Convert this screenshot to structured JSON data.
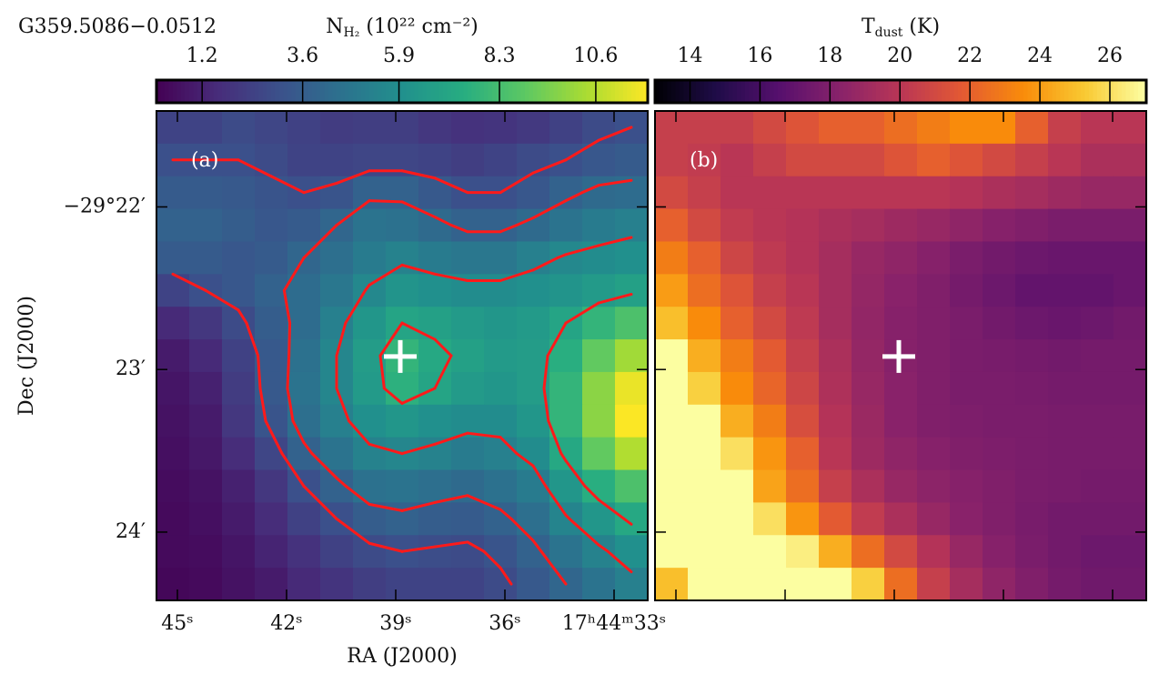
{
  "chart_data": [
    {
      "type": "heatmap",
      "title": "G359.5086−0.0512",
      "panel_label": "(a)",
      "colorbar_label": {
        "main": "N",
        "sub": "H₂",
        "rest": " (10²² cm⁻²)"
      },
      "x_label": "RA (J2000)",
      "y_label": "Dec (J2000)",
      "colormap": "viridis",
      "clim": [
        0.11,
        11.84
      ],
      "cticks": [
        1.2,
        3.6,
        5.9,
        8.3,
        10.6
      ],
      "xlim": [
        45.575,
        32.075
      ],
      "xticks": [
        {
          "value": 45,
          "label": "45ˢ"
        },
        {
          "value": 42,
          "label": "42ˢ"
        },
        {
          "value": 39,
          "label": "39ˢ"
        },
        {
          "value": 36,
          "label": "36ˢ"
        },
        {
          "value": 33,
          "label": "17ʰ44ᵐ33ˢ"
        }
      ],
      "ylim": [
        21.41,
        24.42
      ],
      "yticks": [
        {
          "value": 22,
          "label": "−29°22′"
        },
        {
          "value": 23,
          "label": "23′"
        },
        {
          "value": 24,
          "label": "24′"
        }
      ],
      "values": [
        [
          2.5,
          2.5,
          2.8,
          2.6,
          2.4,
          2.2,
          2.3,
          2.3,
          2.0,
          1.8,
          1.9,
          2.1,
          2.4,
          2.8,
          3.0
        ],
        [
          3.0,
          3.0,
          3.0,
          2.8,
          2.5,
          2.5,
          2.6,
          2.6,
          2.5,
          2.3,
          2.5,
          2.8,
          3.0,
          3.3,
          3.5
        ],
        [
          3.5,
          3.5,
          3.4,
          3.2,
          3.0,
          3.2,
          3.8,
          3.8,
          3.4,
          3.0,
          3.0,
          3.3,
          3.8,
          4.2,
          4.3
        ],
        [
          3.8,
          3.8,
          3.6,
          3.3,
          3.5,
          4.0,
          4.6,
          4.5,
          4.2,
          3.8,
          3.8,
          4.2,
          4.6,
          5.0,
          5.2
        ],
        [
          3.5,
          3.5,
          3.3,
          3.5,
          4.0,
          4.4,
          5.0,
          5.3,
          5.0,
          4.8,
          4.8,
          5.2,
          5.6,
          5.8,
          6.0
        ],
        [
          2.5,
          3.0,
          3.3,
          3.8,
          4.3,
          4.8,
          5.6,
          6.2,
          6.0,
          5.8,
          5.8,
          6.0,
          6.2,
          6.5,
          6.8
        ],
        [
          1.5,
          2.0,
          2.8,
          3.6,
          4.3,
          5.2,
          6.3,
          7.0,
          6.8,
          6.5,
          6.3,
          6.5,
          7.0,
          7.8,
          8.5
        ],
        [
          1.0,
          1.5,
          2.4,
          3.4,
          4.5,
          5.5,
          6.6,
          7.8,
          7.2,
          6.8,
          6.5,
          6.6,
          7.5,
          9.0,
          10.2
        ],
        [
          0.8,
          1.2,
          2.2,
          3.4,
          4.6,
          5.5,
          6.5,
          7.6,
          7.0,
          6.5,
          6.3,
          6.6,
          7.8,
          9.8,
          11.5
        ],
        [
          0.7,
          1.0,
          2.0,
          3.2,
          4.4,
          5.2,
          6.0,
          6.3,
          6.0,
          5.8,
          5.8,
          6.3,
          7.8,
          9.8,
          11.8
        ],
        [
          0.6,
          0.9,
          1.6,
          2.6,
          3.8,
          4.6,
          5.3,
          5.5,
          5.3,
          5.0,
          5.2,
          5.8,
          7.2,
          9.0,
          10.5
        ],
        [
          0.5,
          0.7,
          1.2,
          2.0,
          3.0,
          3.8,
          4.5,
          4.6,
          4.4,
          4.2,
          4.5,
          5.0,
          6.3,
          7.5,
          8.5
        ],
        [
          0.4,
          0.6,
          1.0,
          1.6,
          2.4,
          3.0,
          3.6,
          3.8,
          3.6,
          3.5,
          3.8,
          4.4,
          5.4,
          6.3,
          7.2
        ],
        [
          0.4,
          0.5,
          0.8,
          1.3,
          1.8,
          2.4,
          2.8,
          3.0,
          2.9,
          2.8,
          3.2,
          3.8,
          4.6,
          5.3,
          6.0
        ],
        [
          0.3,
          0.4,
          0.7,
          1.0,
          1.5,
          1.9,
          2.3,
          2.5,
          2.5,
          2.5,
          2.8,
          3.4,
          4.0,
          4.6,
          5.2
        ]
      ],
      "contour_levels": [
        3,
        4,
        5.5,
        7
      ],
      "contour_color": "#ff1a1a",
      "marker": {
        "x": 38.875,
        "y": 22.92
      },
      "marker_color": "#ffffff"
    },
    {
      "type": "heatmap",
      "panel_label": "(b)",
      "colorbar_label": {
        "main": "T",
        "sub": "dust",
        "rest": " (K)"
      },
      "colormap": "inferno",
      "clim": [
        13,
        27.04
      ],
      "cticks": [
        14,
        16,
        18,
        20,
        22,
        24,
        26
      ],
      "xlim": [
        45.575,
        32.075
      ],
      "xticks": [
        45,
        42,
        39,
        36,
        33
      ],
      "ylim": [
        21.41,
        24.42
      ],
      "yticks": [
        22,
        23,
        24
      ],
      "values": [
        [
          20.5,
          20.5,
          20.5,
          21,
          21.5,
          22,
          22,
          22.5,
          23,
          23.5,
          23.5,
          22,
          20.5,
          20,
          20
        ],
        [
          20.5,
          20.3,
          20,
          20.5,
          21,
          21,
          21,
          21.5,
          22,
          21.5,
          21,
          20.5,
          20,
          19.5,
          19.5
        ],
        [
          21,
          20.5,
          20,
          20,
          20,
          20,
          20,
          20,
          20,
          19.8,
          19.5,
          19.3,
          19,
          18.8,
          18.8
        ],
        [
          22,
          21,
          20.3,
          20,
          19.8,
          19.5,
          19.3,
          19,
          18.8,
          18.5,
          18.2,
          18,
          17.8,
          17.8,
          17.8
        ],
        [
          23,
          22,
          20.8,
          20.2,
          19.8,
          19.3,
          18.8,
          18.5,
          18.2,
          17.8,
          17.5,
          17.3,
          17.2,
          17.2,
          17.2
        ],
        [
          24,
          22.5,
          21.5,
          20.5,
          20,
          19.3,
          18.7,
          18.3,
          18,
          17.6,
          17.3,
          17,
          17,
          17,
          17.2
        ],
        [
          25,
          23.5,
          22,
          21,
          20.2,
          19.3,
          18.6,
          18.2,
          18,
          17.8,
          17.5,
          17.3,
          17.2,
          17.3,
          17.5
        ],
        [
          27,
          24.5,
          23,
          21.8,
          20.5,
          19.5,
          18.7,
          18.2,
          18,
          17.8,
          17.7,
          17.6,
          17.5,
          17.6,
          17.6
        ],
        [
          27,
          25.5,
          23.5,
          22.2,
          20.8,
          19.6,
          18.8,
          18.3,
          18,
          17.8,
          17.8,
          17.7,
          17.6,
          17.6,
          17.6
        ],
        [
          27,
          27,
          24.5,
          23,
          21.2,
          19.8,
          18.9,
          18.3,
          18,
          17.9,
          17.8,
          17.8,
          17.7,
          17.7,
          17.7
        ],
        [
          27,
          27,
          26,
          23.8,
          22,
          20,
          19,
          18.5,
          18.2,
          18,
          17.9,
          17.8,
          17.7,
          17.7,
          17.7
        ],
        [
          27,
          27,
          27,
          24.2,
          22.5,
          20.5,
          19.5,
          18.8,
          18.4,
          18.2,
          18,
          17.8,
          17.7,
          17.6,
          17.6
        ],
        [
          27,
          27,
          27,
          26,
          23.8,
          21.8,
          20.3,
          19.5,
          18.8,
          18.3,
          18,
          17.7,
          17.5,
          17.5,
          17.5
        ],
        [
          27,
          27,
          27,
          27,
          26.5,
          24.5,
          22.5,
          21,
          19.8,
          18.8,
          18.2,
          17.8,
          17.5,
          17.3,
          17.3
        ],
        [
          25,
          27,
          27,
          27,
          27,
          27,
          25.5,
          22.5,
          20.5,
          19.3,
          18.5,
          18,
          17.6,
          17.4,
          17.4
        ]
      ],
      "marker": {
        "x": 38.875,
        "y": 22.92
      },
      "marker_color": "#ffffff"
    }
  ]
}
